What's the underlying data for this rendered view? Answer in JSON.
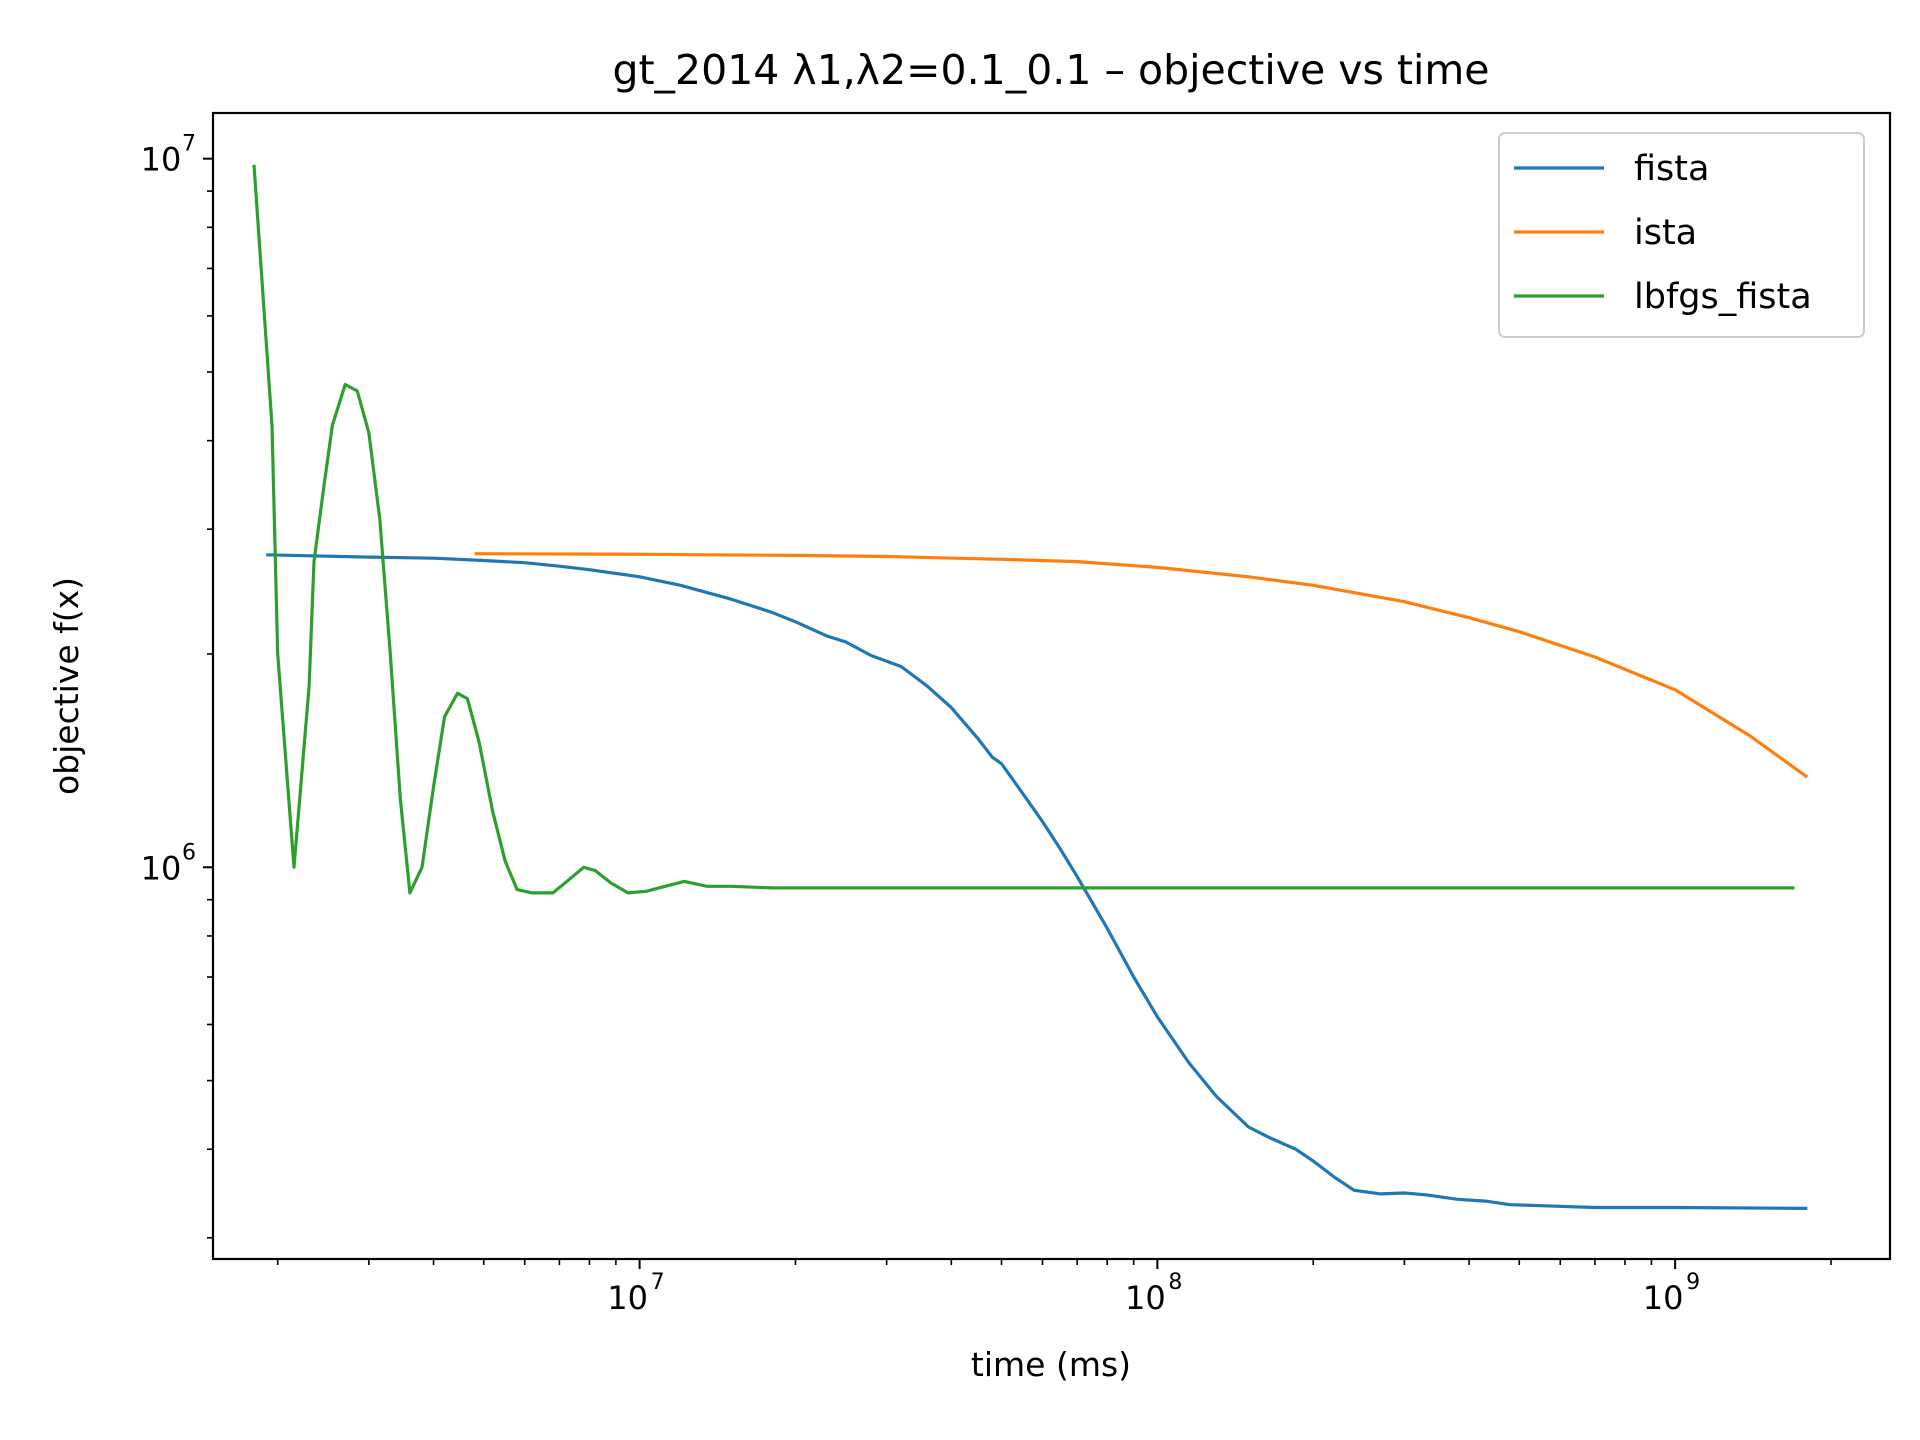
{
  "chart_data": {
    "type": "line",
    "title": "gt_2014   λ1,λ2=0.1_0.1  –  objective vs time",
    "xlabel": "time (ms)",
    "ylabel": "objective f(x)",
    "xscale": "log",
    "yscale": "log",
    "xlim": [
      1500000,
      2600000000
    ],
    "ylim": [
      280000,
      11600000
    ],
    "x_ticks": [
      {
        "value": 10000000,
        "base": "10",
        "exp": "7"
      },
      {
        "value": 100000000,
        "base": "10",
        "exp": "8"
      },
      {
        "value": 1000000000,
        "base": "10",
        "exp": "9"
      }
    ],
    "y_ticks": [
      {
        "value": 1000000,
        "base": "10",
        "exp": "6"
      },
      {
        "value": 10000000,
        "base": "10",
        "exp": "7"
      }
    ],
    "grid": false,
    "legend_position": "top-right",
    "series": [
      {
        "name": "fista",
        "color": "#1f77b4",
        "points": [
          [
            1900000,
            2760000
          ],
          [
            3000000,
            2740000
          ],
          [
            4000000,
            2730000
          ],
          [
            5000000,
            2710000
          ],
          [
            6000000,
            2690000
          ],
          [
            7000000,
            2660000
          ],
          [
            8000000,
            2630000
          ],
          [
            10000000,
            2570000
          ],
          [
            12000000,
            2500000
          ],
          [
            15000000,
            2390000
          ],
          [
            18000000,
            2290000
          ],
          [
            20000000,
            2220000
          ],
          [
            23000000,
            2120000
          ],
          [
            25000000,
            2080000
          ],
          [
            28000000,
            1990000
          ],
          [
            32000000,
            1920000
          ],
          [
            36000000,
            1800000
          ],
          [
            40000000,
            1680000
          ],
          [
            45000000,
            1520000
          ],
          [
            48000000,
            1430000
          ],
          [
            50000000,
            1400000
          ],
          [
            55000000,
            1270000
          ],
          [
            60000000,
            1160000
          ],
          [
            65000000,
            1060000
          ],
          [
            70000000,
            970000
          ],
          [
            80000000,
            820000
          ],
          [
            90000000,
            700000
          ],
          [
            100000000,
            615000
          ],
          [
            115000000,
            530000
          ],
          [
            130000000,
            475000
          ],
          [
            150000000,
            430000
          ],
          [
            165000000,
            415000
          ],
          [
            185000000,
            400000
          ],
          [
            200000000,
            385000
          ],
          [
            220000000,
            365000
          ],
          [
            240000000,
            350000
          ],
          [
            270000000,
            346000
          ],
          [
            300000000,
            347000
          ],
          [
            330000000,
            345000
          ],
          [
            380000000,
            340000
          ],
          [
            430000000,
            338000
          ],
          [
            480000000,
            334000
          ],
          [
            550000000,
            333000
          ],
          [
            700000000,
            331000
          ],
          [
            1000000000,
            331000
          ],
          [
            1800000000,
            330000
          ]
        ]
      },
      {
        "name": "ista",
        "color": "#ff7f0e",
        "points": [
          [
            4800000,
            2770000
          ],
          [
            10000000,
            2765000
          ],
          [
            20000000,
            2755000
          ],
          [
            30000000,
            2745000
          ],
          [
            50000000,
            2720000
          ],
          [
            70000000,
            2700000
          ],
          [
            100000000,
            2650000
          ],
          [
            150000000,
            2570000
          ],
          [
            200000000,
            2500000
          ],
          [
            300000000,
            2370000
          ],
          [
            400000000,
            2250000
          ],
          [
            500000000,
            2150000
          ],
          [
            700000000,
            1980000
          ],
          [
            1000000000,
            1780000
          ],
          [
            1400000000,
            1530000
          ],
          [
            1800000000,
            1340000
          ]
        ]
      },
      {
        "name": "lbfgs_fista",
        "color": "#2ca02c",
        "points": [
          [
            1800000,
            9800000
          ],
          [
            1950000,
            4200000
          ],
          [
            2000000,
            2000000
          ],
          [
            2150000,
            1000000
          ],
          [
            2300000,
            1800000
          ],
          [
            2350000,
            2700000
          ],
          [
            2450000,
            3400000
          ],
          [
            2550000,
            4200000
          ],
          [
            2700000,
            4800000
          ],
          [
            2850000,
            4700000
          ],
          [
            3000000,
            4100000
          ],
          [
            3150000,
            3100000
          ],
          [
            3300000,
            2000000
          ],
          [
            3450000,
            1250000
          ],
          [
            3600000,
            920000
          ],
          [
            3800000,
            1000000
          ],
          [
            4000000,
            1300000
          ],
          [
            4200000,
            1630000
          ],
          [
            4450000,
            1760000
          ],
          [
            4650000,
            1730000
          ],
          [
            4900000,
            1500000
          ],
          [
            5200000,
            1200000
          ],
          [
            5500000,
            1020000
          ],
          [
            5800000,
            930000
          ],
          [
            6200000,
            920000
          ],
          [
            6800000,
            920000
          ],
          [
            7300000,
            960000
          ],
          [
            7800000,
            1000000
          ],
          [
            8200000,
            990000
          ],
          [
            8800000,
            950000
          ],
          [
            9500000,
            920000
          ],
          [
            10300000,
            925000
          ],
          [
            11200000,
            940000
          ],
          [
            12200000,
            955000
          ],
          [
            13500000,
            940000
          ],
          [
            15000000,
            940000
          ],
          [
            18000000,
            935000
          ],
          [
            22000000,
            935000
          ],
          [
            30000000,
            935000
          ],
          [
            60000000,
            935000
          ],
          [
            200000000,
            935000
          ],
          [
            1000000000,
            935000
          ],
          [
            1700000000,
            935000
          ]
        ]
      }
    ]
  }
}
